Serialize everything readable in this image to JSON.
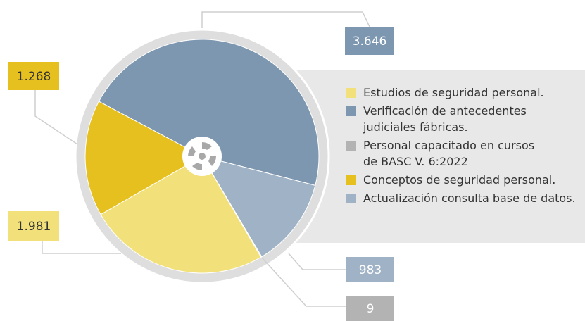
{
  "chart_data": {
    "type": "pie",
    "categories": [
      "Estudios de seguridad personal.",
      "Verificación de antecedentes judiciales fábricas.",
      "Personal capacitado en cursos de BASC V. 6:2022",
      "Conceptos de seguridad personal.",
      "Actualización consulta base de datos."
    ],
    "values": [
      1981,
      3646,
      9,
      1268,
      983
    ],
    "value_labels": [
      "1.981",
      "3.646",
      "9",
      "1.268",
      "983"
    ],
    "colors": [
      "#f2e07a",
      "#7d97b0",
      "#b3b3b3",
      "#e6c01e",
      "#9fb2c6"
    ]
  }
}
